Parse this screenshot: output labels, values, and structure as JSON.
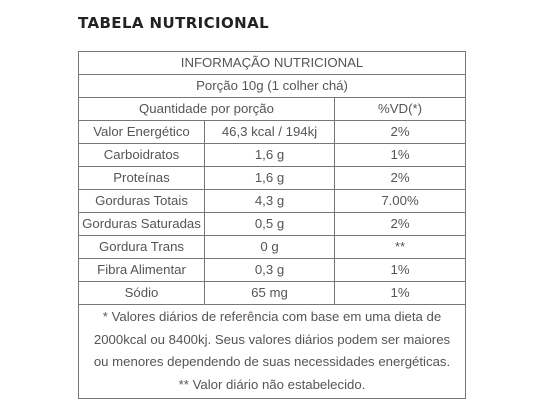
{
  "heading": "TABELA NUTRICIONAL",
  "table": {
    "title": "INFORMAÇÃO NUTRICIONAL",
    "portion": "Porção 10g (1 colher chá)",
    "header": {
      "quantity": "Quantidade por porção",
      "vd": "%VD(*)"
    },
    "rows": [
      {
        "name": "Valor Energético",
        "amount": "46,3 kcal / 194kj",
        "vd": "2%"
      },
      {
        "name": "Carboidratos",
        "amount": "1,6 g",
        "vd": "1%"
      },
      {
        "name": "Proteínas",
        "amount": "1,6 g",
        "vd": "2%"
      },
      {
        "name": "Gorduras Totais",
        "amount": "4,3 g",
        "vd": "7.00%"
      },
      {
        "name": "Gorduras Saturadas",
        "amount": "0,5 g",
        "vd": "2%"
      },
      {
        "name": "Gordura Trans",
        "amount": "0 g",
        "vd": "**"
      },
      {
        "name": "Fibra Alimentar",
        "amount": "0,3 g",
        "vd": "1%"
      },
      {
        "name": "Sódio",
        "amount": "65 mg",
        "vd": "1%"
      }
    ],
    "footnote_lines": [
      "* Valores diários de referência com base em uma dieta de",
      "2000kcal ou 8400kj. Seus valores diários podem ser maiores",
      "ou menores dependendo de suas necessidades energéticas.",
      "** Valor diário não estabelecido."
    ]
  }
}
